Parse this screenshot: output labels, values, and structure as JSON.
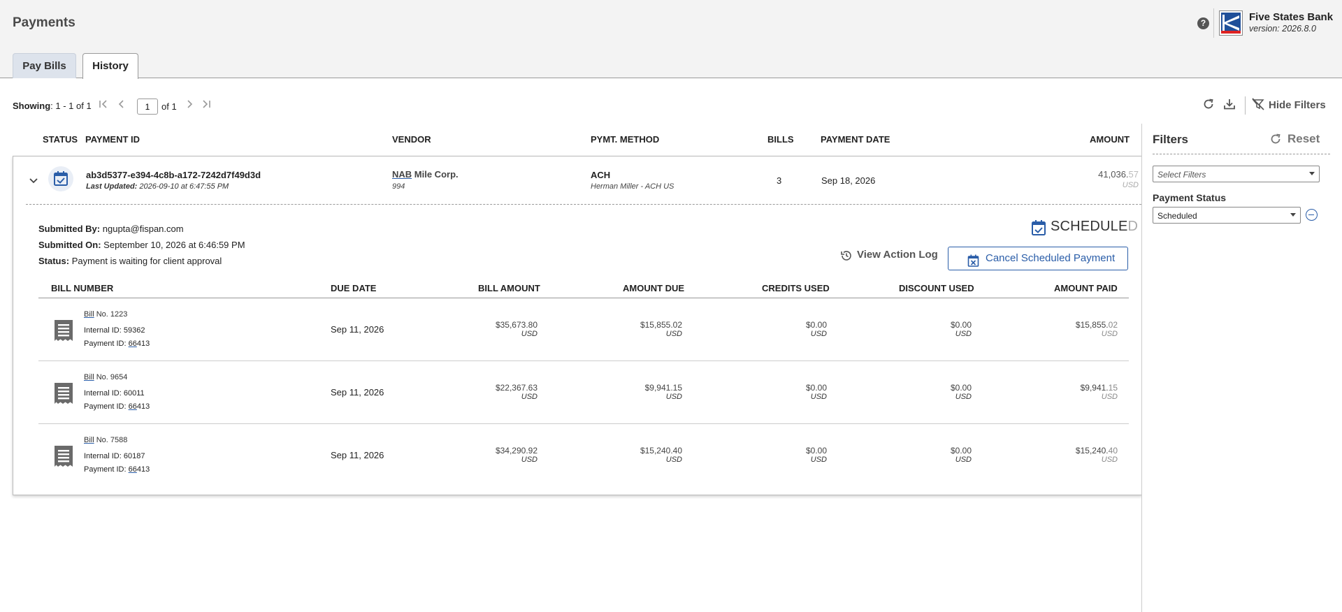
{
  "header": {
    "title": "Payments",
    "bank_name": "Five States Bank",
    "version": "version: 2026.8.0",
    "help": "?"
  },
  "tabs": [
    {
      "label": "Pay Bills",
      "active": false
    },
    {
      "label": "History",
      "active": true
    }
  ],
  "toolbar": {
    "showing_label": "Showing",
    "showing_value": ": 1 - 1 of 1",
    "page_input": "1",
    "page_of": "of 1",
    "hide_filters": "Hide Filters"
  },
  "columns": {
    "status": "STATUS",
    "payment_id": "PAYMENT ID",
    "vendor": "VENDOR",
    "method": "PYMT. METHOD",
    "bills": "BILLS",
    "payment_date": "PAYMENT DATE",
    "amount": "AMOUNT"
  },
  "payment": {
    "id": "ab3d5377-e394-4c8b-a172-7242d7f49d3d",
    "last_updated_label": "Last Updated:",
    "last_updated": "2026-09-10 at 6:47:55 PM",
    "vendor_prefix": "NAB",
    "vendor_rest": " Mile Corp.",
    "vendor_id": "994",
    "method": "ACH",
    "method_sub": "Herman Miller - ACH US",
    "bills": "3",
    "payment_date": "Sep 18, 2026",
    "amount_main": "41,036.",
    "amount_faded": "57",
    "currency": "USD"
  },
  "details": {
    "submitted_by_label": "Submitted By:",
    "submitted_by": "ngupta@fispan.com",
    "submitted_on_label": "Submitted On:",
    "submitted_on": "September 10, 2026 at 6:46:59 PM",
    "status_label": "Status:",
    "status": "Payment is waiting for client approval",
    "badge_main": "SCHEDULE",
    "badge_faded": "D",
    "view_log": "View Action Log",
    "cancel": "Cancel Scheduled Payment"
  },
  "bill_columns": {
    "bill_number": "BILL NUMBER",
    "due_date": "DUE DATE",
    "bill_amount": "BILL AMOUNT",
    "amount_due": "AMOUNT DUE",
    "credits_used": "CREDITS USED",
    "discount_used": "DISCOUNT USED",
    "amount_paid": "AMOUNT PAID"
  },
  "bill_common": {
    "bill_word": "Bill",
    "internal_label": "Internal ID:",
    "payment_id_label": "Payment ID:",
    "payment_id_prefix": "66",
    "payment_id_rest": "413"
  },
  "bills_list": [
    {
      "no": " No. 1223",
      "internal_id": "59362",
      "due": "Sep 11, 2026",
      "bill_amount": "$35,673.80",
      "amount_due": "$15,855.02",
      "credits": "$0.00",
      "discount": "$0.00",
      "paid_main": "$15,855.",
      "paid_faded": "02",
      "currency": "USD"
    },
    {
      "no": " No. 9654",
      "internal_id": "60011",
      "due": "Sep 11, 2026",
      "bill_amount": "$22,367.63",
      "amount_due": "$9,941.15",
      "credits": "$0.00",
      "discount": "$0.00",
      "paid_main": "$9,941.",
      "paid_faded": "15",
      "currency": "USD"
    },
    {
      "no": " No. 7588",
      "internal_id": "60187",
      "due": "Sep 11, 2026",
      "bill_amount": "$34,290.92",
      "amount_due": "$15,240.40",
      "credits": "$0.00",
      "discount": "$0.00",
      "paid_main": "$15,240.",
      "paid_faded": "40",
      "currency": "USD"
    }
  ],
  "filters": {
    "title": "Filters",
    "reset": "Reset",
    "select_placeholder": "Select Filters",
    "status_label": "Payment Status",
    "status_value": "Scheduled"
  },
  "colors": {
    "accent": "#2a5da8",
    "header_bg": "#f3f3f3"
  }
}
